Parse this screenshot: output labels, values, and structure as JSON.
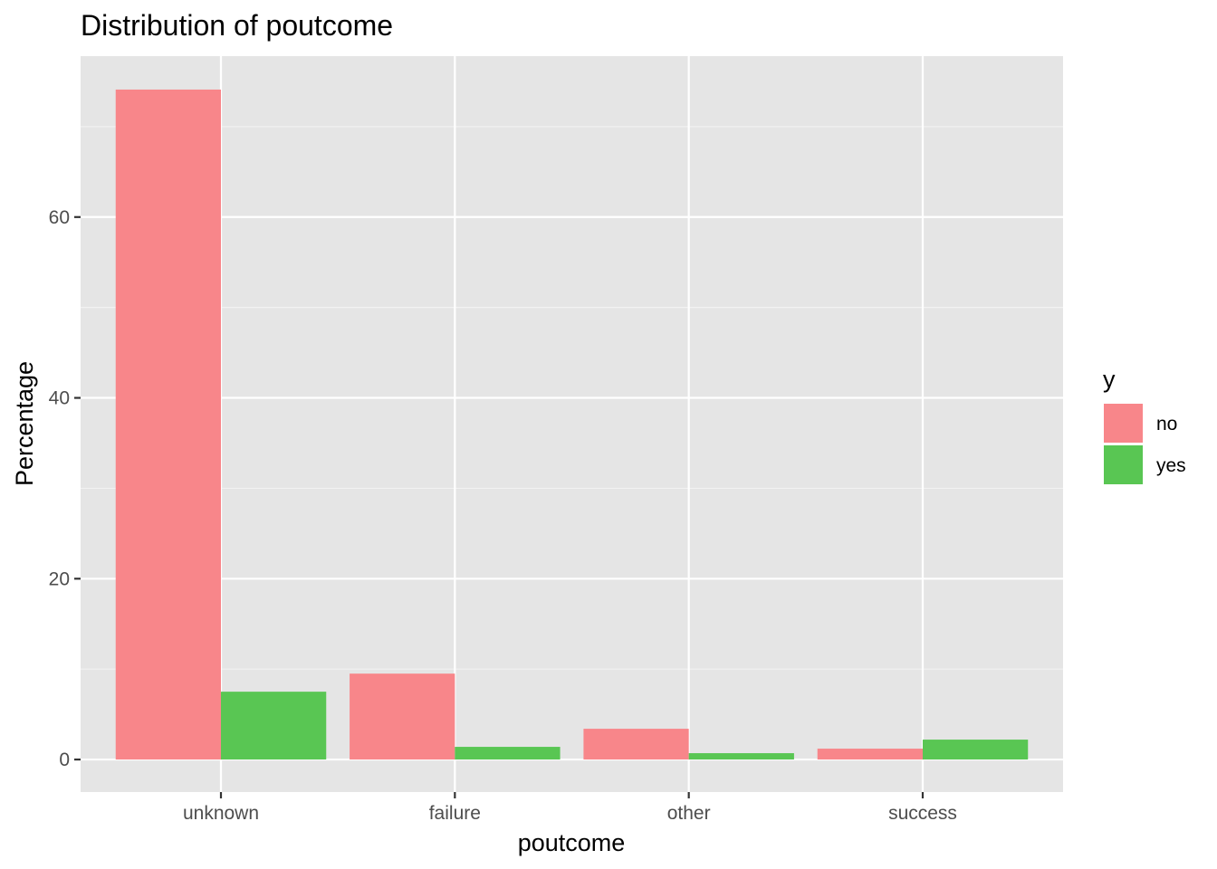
{
  "chart_data": {
    "type": "bar",
    "title": "Distribution of poutcome",
    "xlabel": "poutcome",
    "ylabel": "Percentage",
    "categories": [
      "unknown",
      "failure",
      "other",
      "success"
    ],
    "series": [
      {
        "name": "no",
        "color": "#F8868A",
        "values": [
          74.1,
          9.5,
          3.4,
          1.2
        ]
      },
      {
        "name": "yes",
        "color": "#59C653",
        "values": [
          7.5,
          1.4,
          0.7,
          2.2
        ]
      }
    ],
    "ylim": [
      -3.6,
      77.8
    ],
    "yticks": [
      0,
      20,
      40,
      60
    ],
    "grid": true,
    "legend": {
      "title": "y",
      "position": "right"
    },
    "panel_background": "#E5E5E5"
  }
}
